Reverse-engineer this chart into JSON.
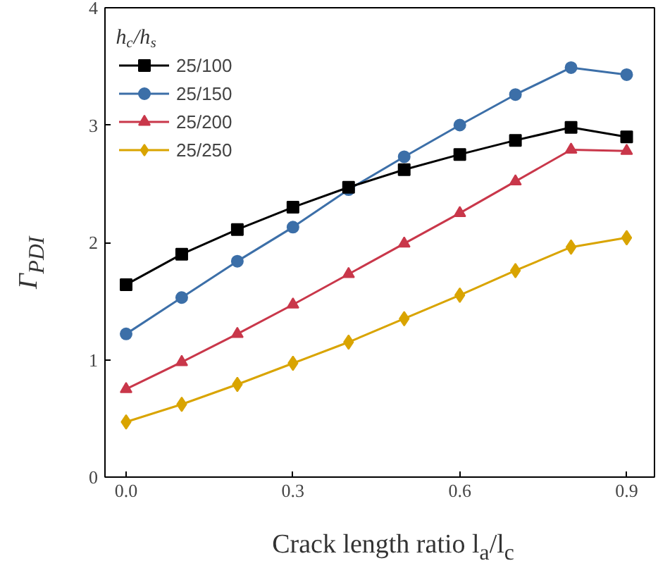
{
  "chart_data": {
    "type": "line",
    "xlabel": "Crack length ratio l$_{a}$/l$_{c}$",
    "ylabel": "Γ$_{PDI}$",
    "legend_title": "h$_{c}$/h$_{s}$",
    "x": [
      0,
      0.1,
      0.2,
      0.3,
      0.4,
      0.5,
      0.6,
      0.7,
      0.8,
      0.9
    ],
    "xlim": [
      -0.038,
      0.95
    ],
    "ylim": [
      0,
      4
    ],
    "xticks": [
      {
        "value": 0,
        "label": "0.0"
      },
      0.3,
      0.6,
      0.9
    ],
    "yticks": [
      0,
      1,
      2,
      3,
      4
    ],
    "grid": false,
    "legend": "top left",
    "line_style": "solid",
    "series": [
      {
        "name": "25/100",
        "color": "#000000",
        "marker": "square",
        "values": [
          1.64,
          1.9,
          2.11,
          2.3,
          2.47,
          2.62,
          2.75,
          2.87,
          2.98,
          2.9
        ]
      },
      {
        "name": "25/150",
        "color": "#3c6fa8",
        "marker": "circle",
        "values": [
          1.22,
          1.53,
          1.84,
          2.13,
          2.45,
          2.73,
          3.0,
          3.26,
          3.49,
          3.43
        ]
      },
      {
        "name": "25/200",
        "color": "#c9374a",
        "marker": "triangle",
        "values": [
          0.75,
          0.98,
          1.22,
          1.47,
          1.73,
          1.99,
          2.25,
          2.52,
          2.79,
          2.78
        ]
      },
      {
        "name": "25/250",
        "color": "#d9a400",
        "marker": "diamond",
        "values": [
          0.47,
          0.62,
          0.79,
          0.97,
          1.15,
          1.35,
          1.55,
          1.76,
          1.96,
          2.04
        ]
      }
    ]
  }
}
